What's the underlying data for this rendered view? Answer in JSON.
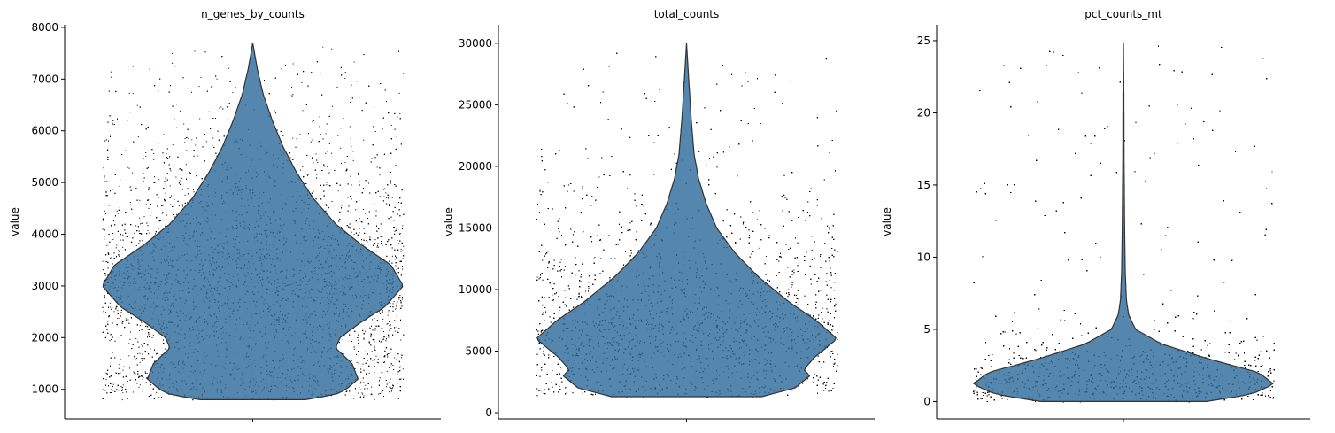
{
  "chart_data": [
    {
      "type": "violin",
      "title": "n_genes_by_counts",
      "ylabel": "value",
      "xlabel": "",
      "ylim": [
        430,
        8050
      ],
      "yticks": [
        1000,
        2000,
        3000,
        4000,
        5000,
        6000,
        7000,
        8000
      ],
      "ytick_labels": [
        "1000",
        "2000",
        "3000",
        "4000",
        "5000",
        "6000",
        "7000",
        "8000"
      ],
      "data_range": [
        800,
        7700
      ],
      "color": "#2e6b9c",
      "density_profile": [
        [
          800,
          0.35
        ],
        [
          900,
          0.55
        ],
        [
          1000,
          0.62
        ],
        [
          1200,
          0.7
        ],
        [
          1500,
          0.66
        ],
        [
          1800,
          0.55
        ],
        [
          2000,
          0.58
        ],
        [
          2300,
          0.72
        ],
        [
          2600,
          0.88
        ],
        [
          3000,
          1.0
        ],
        [
          3400,
          0.92
        ],
        [
          3800,
          0.72
        ],
        [
          4200,
          0.55
        ],
        [
          4700,
          0.4
        ],
        [
          5200,
          0.29
        ],
        [
          5700,
          0.2
        ],
        [
          6200,
          0.13
        ],
        [
          6700,
          0.07
        ],
        [
          7200,
          0.03
        ],
        [
          7700,
          0.0
        ]
      ]
    },
    {
      "type": "violin",
      "title": "total_counts",
      "ylabel": "value",
      "xlabel": "",
      "ylim": [
        -500,
        31500
      ],
      "yticks": [
        0,
        5000,
        10000,
        15000,
        20000,
        25000,
        30000
      ],
      "ytick_labels": [
        "0",
        "5000",
        "10000",
        "15000",
        "20000",
        "25000",
        "30000"
      ],
      "data_range": [
        1300,
        30000
      ],
      "color": "#2e6b9c",
      "density_profile": [
        [
          1300,
          0.5
        ],
        [
          2000,
          0.72
        ],
        [
          3000,
          0.82
        ],
        [
          3500,
          0.78
        ],
        [
          4500,
          0.85
        ],
        [
          6000,
          1.0
        ],
        [
          7500,
          0.86
        ],
        [
          9000,
          0.68
        ],
        [
          11000,
          0.48
        ],
        [
          13000,
          0.32
        ],
        [
          15000,
          0.2
        ],
        [
          17000,
          0.13
        ],
        [
          19000,
          0.08
        ],
        [
          21000,
          0.05
        ],
        [
          24000,
          0.03
        ],
        [
          27000,
          0.015
        ],
        [
          30000,
          0.0
        ]
      ]
    },
    {
      "type": "violin",
      "title": "pct_counts_mt",
      "ylabel": "value",
      "xlabel": "",
      "ylim": [
        -1.2,
        26.1
      ],
      "yticks": [
        0,
        5,
        10,
        15,
        20,
        25
      ],
      "ytick_labels": [
        "0",
        "5",
        "10",
        "15",
        "20",
        "25"
      ],
      "data_range": [
        0,
        24.9
      ],
      "color": "#2e6b9c",
      "density_profile": [
        [
          0,
          0.55
        ],
        [
          0.5,
          0.85
        ],
        [
          1.2,
          1.0
        ],
        [
          2,
          0.9
        ],
        [
          3,
          0.55
        ],
        [
          4,
          0.25
        ],
        [
          5,
          0.08
        ],
        [
          6,
          0.035
        ],
        [
          7,
          0.02
        ],
        [
          9,
          0.012
        ],
        [
          12,
          0.008
        ],
        [
          17,
          0.004
        ],
        [
          21,
          0.003
        ],
        [
          24.9,
          0.0
        ]
      ]
    }
  ]
}
